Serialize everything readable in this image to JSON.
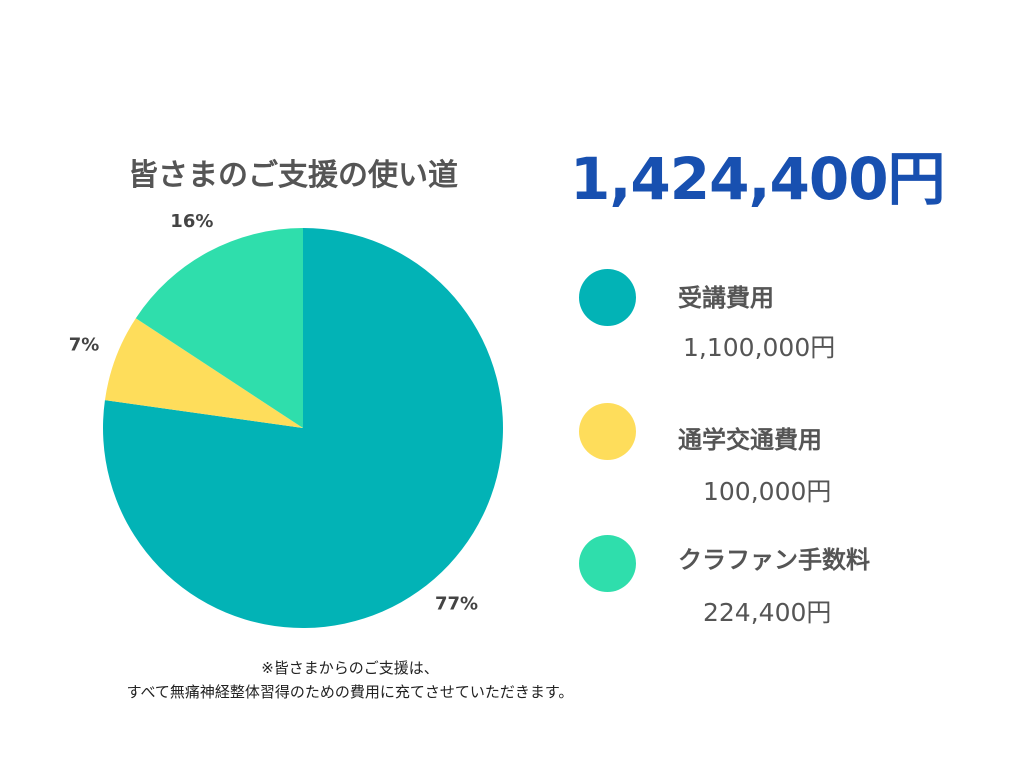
{
  "header": {
    "title": "皆さまのご支援の使い道",
    "total": "1,424,400円"
  },
  "chart_data": {
    "type": "pie",
    "title": "皆さまのご支援の使い道",
    "total": "1,424,400円",
    "slices": [
      {
        "name": "受講費用",
        "amount": "1,100,000円",
        "value": 1100000,
        "percent_label": "77%",
        "color": "#02b3b6"
      },
      {
        "name": "通学交通費用",
        "amount": "100,000円",
        "value": 100000,
        "percent_label": "7%",
        "color": "#fedd5b"
      },
      {
        "name": "クラファン手数料",
        "amount": "224,400円",
        "value": 224400,
        "percent_label": "16%",
        "color": "#2fdeac"
      }
    ]
  },
  "legend": [
    {
      "name": "受講費用",
      "amount": "1,100,000円",
      "color": "#02b3b6"
    },
    {
      "name": "通学交通費用",
      "amount": "100,000円",
      "color": "#fedd5b"
    },
    {
      "name": "クラファン手数料",
      "amount": "224,400円",
      "color": "#2fdeac"
    }
  ],
  "footnote": {
    "line1": "※皆さまからのご支援は、",
    "line2": "すべて無痛神経整体習得のための費用に充てさせていただきます。"
  }
}
